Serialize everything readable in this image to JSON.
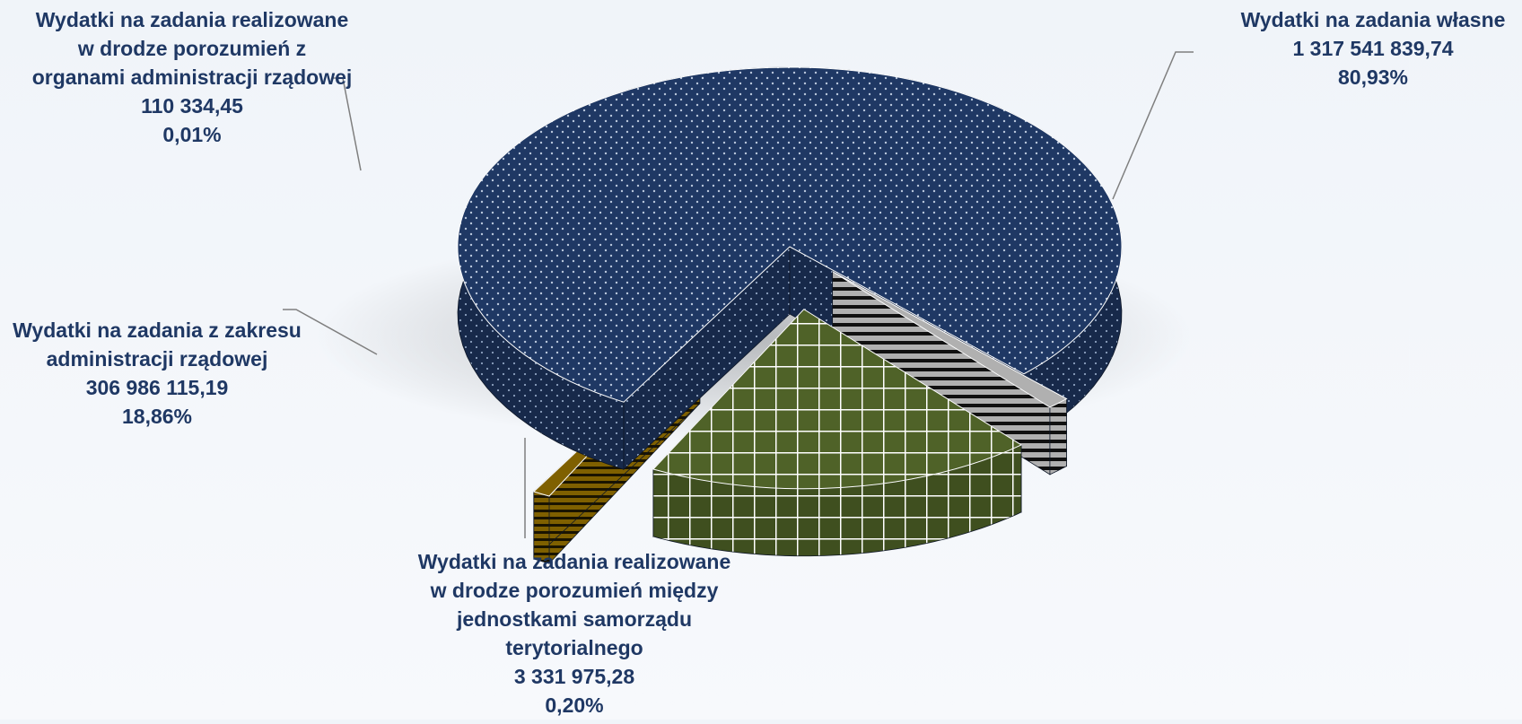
{
  "chart_data": {
    "type": "pie",
    "style": "3d-exploded",
    "title": "",
    "series": [
      {
        "key": "own",
        "label_lines": [
          "Wydatki na zadania własne"
        ],
        "value_text": "1 317 541 839,74",
        "value": 1317541839.74,
        "percent_text": "80,93%",
        "percent": 80.93,
        "color": "#1f3864",
        "pattern": "dots"
      },
      {
        "key": "jst",
        "label_lines": [
          "Wydatki na zadania realizowane",
          "w drodze porozumień między",
          "jednostkami samorządu",
          "terytorialnego"
        ],
        "value_text": "3 331 975,28",
        "value": 3331975.28,
        "percent_text": "0,20%",
        "percent": 0.2,
        "color": "#b0b0b0",
        "pattern": "horizontal-stripes"
      },
      {
        "key": "gov",
        "label_lines": [
          "Wydatki na zadania z zakresu",
          "administracji rządowej"
        ],
        "value_text": "306 986 115,19",
        "value": 306986115.19,
        "percent_text": "18,86%",
        "percent": 18.86,
        "color": "#4f6228",
        "pattern": "grid"
      },
      {
        "key": "gov_agree",
        "label_lines": [
          "Wydatki na zadania realizowane",
          "w drodze porozumień z",
          "organami administracji rządowej"
        ],
        "value_text": "110 334,45",
        "value": 110334.45,
        "percent_text": "0,01%",
        "percent": 0.01,
        "color": "#7f6000",
        "pattern": "horizontal-stripes"
      }
    ]
  }
}
